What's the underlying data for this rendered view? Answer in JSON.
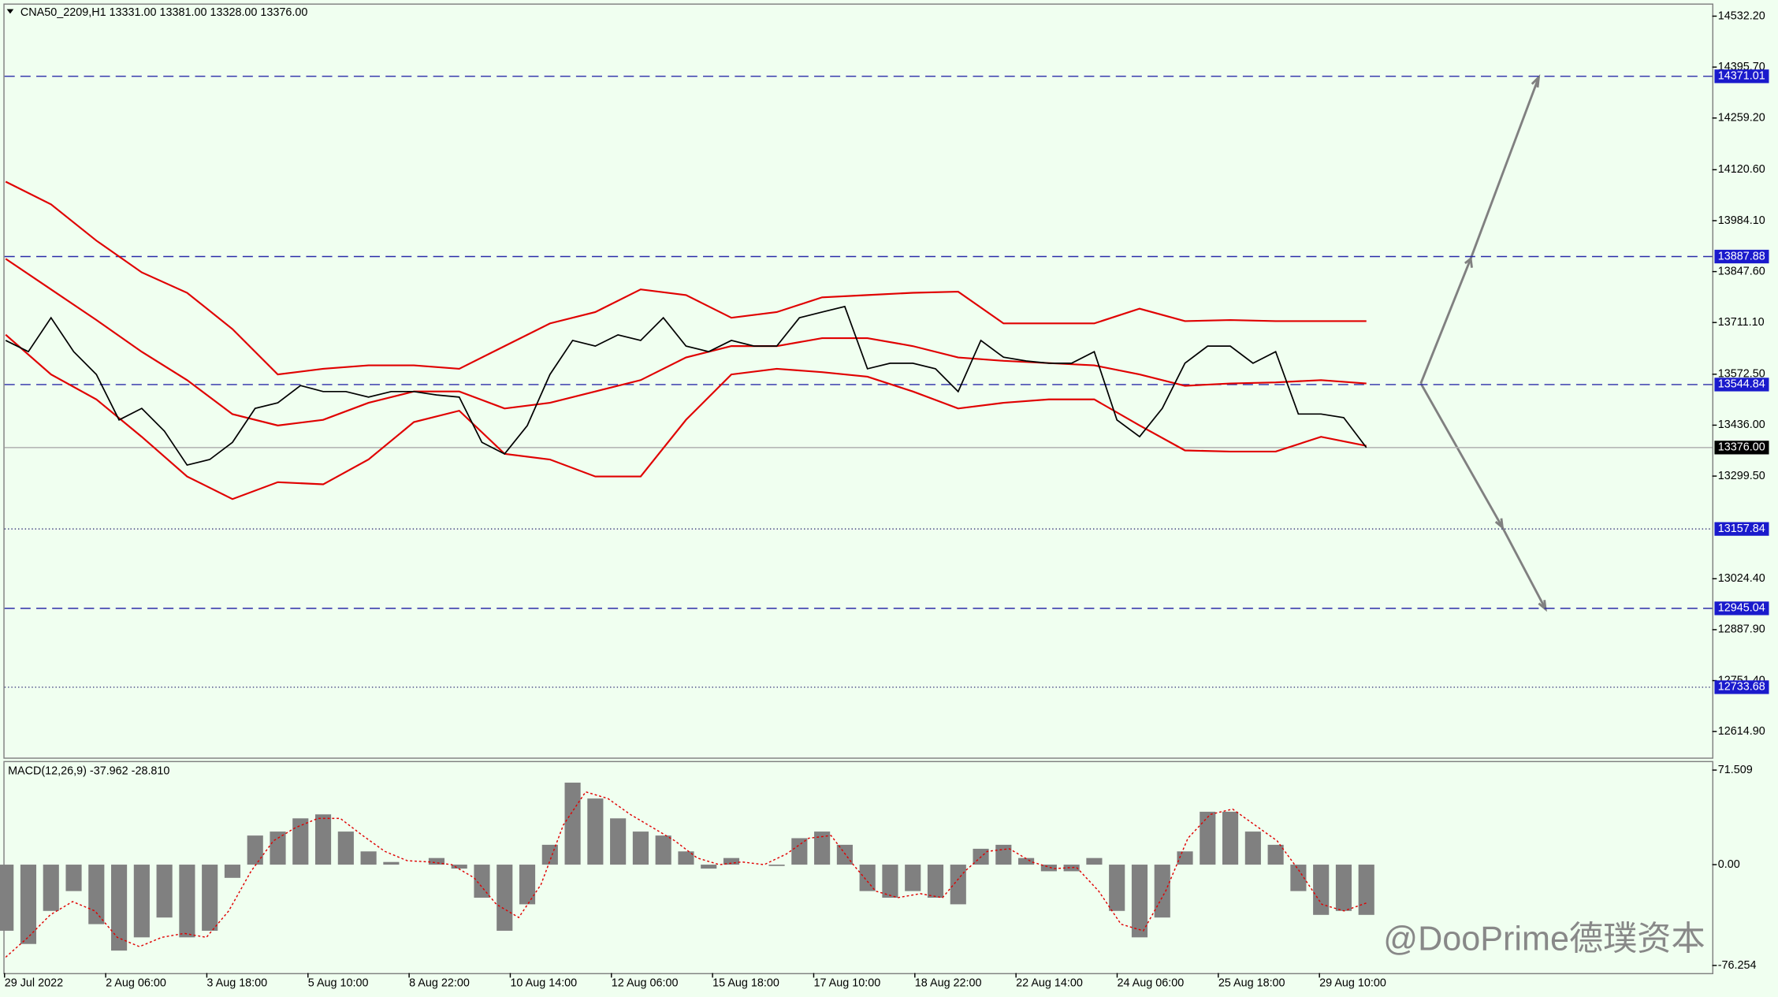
{
  "watermark": "@DooPrime德璞资本",
  "chart_data": [
    {
      "type": "line",
      "title": "CNA50_2209,H1  13331.00 13381.00 13328.00 13376.00",
      "color": "#000000",
      "band_color": "#e00000",
      "close": [
        13663,
        13633,
        13724,
        13633,
        13572,
        13450,
        13481,
        13420,
        13329,
        13344,
        13390,
        13481,
        13496,
        13542,
        13526,
        13526,
        13511,
        13526,
        13526,
        13517,
        13511,
        13390,
        13359,
        13435,
        13572,
        13663,
        13648,
        13678,
        13663,
        13724,
        13648,
        13633,
        13663,
        13648,
        13648,
        13724,
        13739,
        13754,
        13587,
        13602,
        13602,
        13587,
        13526,
        13663,
        13618,
        13608,
        13602,
        13602,
        13633,
        13450,
        13405,
        13481,
        13602,
        13648,
        13648,
        13602,
        13633,
        13466,
        13466,
        13456,
        13376
      ],
      "bands": {
        "upper": [
          14088.5,
          14027.8,
          13930.5,
          13845.4,
          13790.8,
          13693.5,
          13572,
          13587.2,
          13596.3,
          13596.3,
          13587.2,
          13648,
          13708.7,
          13739.1,
          13799.9,
          13784.7,
          13723.9,
          13739.1,
          13778.6,
          13784.7,
          13790.8,
          13793.8,
          13708.7,
          13708.7,
          13708.7,
          13748.2,
          13714.8,
          13717.8,
          13714.8,
          13714.8,
          13714.8
        ],
        "middle": [
          13881.9,
          13799.9,
          13717.8,
          13632.8,
          13556.8,
          13465.6,
          13435.3,
          13450.5,
          13496.1,
          13526.4,
          13526.4,
          13480.8,
          13496.1,
          13526.4,
          13556.8,
          13617.6,
          13648,
          13648,
          13669.2,
          13669.2,
          13648,
          13617.6,
          13608.5,
          13602.4,
          13596.3,
          13572,
          13541.6,
          13547.7,
          13550.7,
          13556.8,
          13547.7
        ],
        "lower": [
          13678.3,
          13572,
          13505.2,
          13404.9,
          13298.5,
          13237.8,
          13283.3,
          13277.3,
          13344.1,
          13444.4,
          13474.8,
          13359.3,
          13344.1,
          13298.5,
          13298.5,
          13450.5,
          13572,
          13587.2,
          13578.1,
          13565.9,
          13526.4,
          13480.8,
          13496.1,
          13505.2,
          13505.2,
          13435.3,
          13368.4,
          13365.4,
          13365.4,
          13404.9,
          13380.6
        ]
      },
      "levels": [
        {
          "value": 14371.01,
          "style": "dashed"
        },
        {
          "value": 13887.88,
          "style": "dashed"
        },
        {
          "value": 13544.84,
          "style": "dashed"
        },
        {
          "value": 13157.84,
          "style": "dotted"
        },
        {
          "value": 12945.04,
          "style": "dashed"
        },
        {
          "value": 12733.68,
          "style": "dotted"
        }
      ],
      "current": {
        "value": 13376,
        "label": "13376.00"
      },
      "ylim": [
        12545,
        14563
      ],
      "yticks": [
        {
          "value": 14532.2,
          "label": "14532.20"
        },
        {
          "value": 14395.7,
          "label": "14395.70"
        },
        {
          "value": 14259.2,
          "label": "14259.20"
        },
        {
          "value": 14120.6,
          "label": "14120.60"
        },
        {
          "value": 13984.1,
          "label": "13984.10"
        },
        {
          "value": 13847.6,
          "label": "13847.60"
        },
        {
          "value": 13711.1,
          "label": "13711.10"
        },
        {
          "value": 13572.5,
          "label": "13572.50"
        },
        {
          "value": 13436,
          "label": "13436.00"
        },
        {
          "value": 13299.5,
          "label": "13299.50"
        },
        {
          "value": 13024.4,
          "label": "13024.40"
        },
        {
          "value": 12887.9,
          "label": "12887.90"
        },
        {
          "value": 12751.4,
          "label": "12751.40"
        },
        {
          "value": 12614.9,
          "label": "12614.90"
        }
      ]
    },
    {
      "type": "bar",
      "title": "MACD(12,26,9) -37.962 -28.810",
      "color": "#808080",
      "signal_color": "#e00000",
      "values": [
        -50,
        -60,
        -35,
        -20,
        -45,
        -65,
        -55,
        -40,
        -55,
        -50,
        -10,
        22,
        25,
        35,
        38,
        25,
        10,
        2,
        0,
        5,
        -3,
        -25,
        -50,
        -30,
        15,
        62,
        50,
        35,
        25,
        22,
        10,
        -3,
        5,
        0,
        -1,
        20,
        25,
        15,
        -20,
        -25,
        -20,
        -25,
        -30,
        12,
        15,
        5,
        -5,
        -5,
        5,
        -35,
        -55,
        -40,
        10,
        40,
        40,
        25,
        15,
        -20,
        -38,
        -35,
        -38
      ],
      "signal": [
        -70,
        -55,
        -38,
        -28,
        -35,
        -55,
        -62,
        -55,
        -52,
        -55,
        -35,
        -5,
        18,
        28,
        35,
        35,
        22,
        10,
        3,
        2,
        0,
        -10,
        -30,
        -40,
        -15,
        30,
        55,
        50,
        38,
        28,
        18,
        5,
        0,
        2,
        0,
        8,
        20,
        22,
        0,
        -20,
        -25,
        -22,
        -25,
        -5,
        10,
        12,
        2,
        -3,
        -2,
        -20,
        -45,
        -50,
        -20,
        20,
        38,
        42,
        30,
        18,
        -5,
        -30,
        -35,
        -29
      ],
      "ylim": [
        -82,
        77.5
      ],
      "yticks": [
        71.509,
        {
          "value": 0,
          "label": "0.00"
        },
        -76.254
      ],
      "xtick_labels": [
        "29 Jul 2022",
        "2 Aug 06:00",
        "3 Aug 18:00",
        "5 Aug 10:00",
        "8 Aug 22:00",
        "10 Aug 14:00",
        "12 Aug 06:00",
        "15 Aug 18:00",
        "17 Aug 10:00",
        "18 Aug 22:00",
        "22 Aug 14:00",
        "24 Aug 06:00",
        "25 Aug 18:00",
        "29 Aug 10:00"
      ]
    }
  ]
}
